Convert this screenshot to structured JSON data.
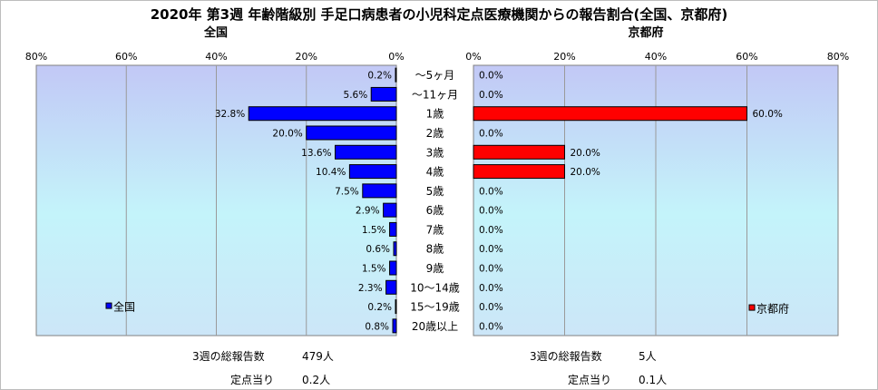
{
  "title": "2020年 第3週 年齢階級別 手足口病患者の小児科定点医療機関からの報告割合(全国、京都府)",
  "chart_data": [
    {
      "type": "bar",
      "orientation": "horizontal",
      "title": "全国",
      "categories": [
        "～5ヶ月",
        "～11ヶ月",
        "1歳",
        "2歳",
        "3歳",
        "4歳",
        "5歳",
        "6歳",
        "7歳",
        "8歳",
        "9歳",
        "10～14歳",
        "15～19歳",
        "20歳以上"
      ],
      "series": [
        {
          "name": "全国",
          "values": [
            0.2,
            5.6,
            32.8,
            20.0,
            13.6,
            10.4,
            7.5,
            2.9,
            1.5,
            0.6,
            1.5,
            2.3,
            0.2,
            0.8
          ],
          "labels": [
            "0.2%",
            "5.6%",
            "32.8%",
            "20.0%",
            "13.6%",
            "10.4%",
            "7.5%",
            "2.9%",
            "1.5%",
            "0.6%",
            "1.5%",
            "2.3%",
            "0.2%",
            "0.8%"
          ],
          "color": "#0000ff"
        }
      ],
      "xlim": [
        0,
        80
      ],
      "x_ticks": [
        "80%",
        "60%",
        "40%",
        "20%",
        "0%"
      ],
      "reversed_axis": true,
      "grid": true,
      "legend_position": "bottom-left"
    },
    {
      "type": "bar",
      "orientation": "horizontal",
      "title": "京都府",
      "categories": [
        "～5ヶ月",
        "～11ヶ月",
        "1歳",
        "2歳",
        "3歳",
        "4歳",
        "5歳",
        "6歳",
        "7歳",
        "8歳",
        "9歳",
        "10～14歳",
        "15～19歳",
        "20歳以上"
      ],
      "series": [
        {
          "name": "京都府",
          "values": [
            0.0,
            0.0,
            60.0,
            0.0,
            20.0,
            20.0,
            0.0,
            0.0,
            0.0,
            0.0,
            0.0,
            0.0,
            0.0,
            0.0
          ],
          "labels": [
            "0.0%",
            "0.0%",
            "60.0%",
            "0.0%",
            "20.0%",
            "20.0%",
            "0.0%",
            "0.0%",
            "0.0%",
            "0.0%",
            "0.0%",
            "0.0%",
            "0.0%",
            "0.0%"
          ],
          "color": "#ff0000"
        }
      ],
      "xlim": [
        0,
        80
      ],
      "x_ticks": [
        "0%",
        "20%",
        "40%",
        "60%",
        "80%"
      ],
      "grid": true,
      "legend_position": "bottom-right"
    }
  ],
  "footer": {
    "national_total_label": "3週の総報告数",
    "national_total_value": "479人",
    "national_per_site_label": "定点当り",
    "national_per_site_value": "0.2人",
    "kyoto_total_label": "3週の総報告数",
    "kyoto_total_value": "5人",
    "kyoto_per_site_label": "定点当り",
    "kyoto_per_site_value": "0.1人"
  }
}
